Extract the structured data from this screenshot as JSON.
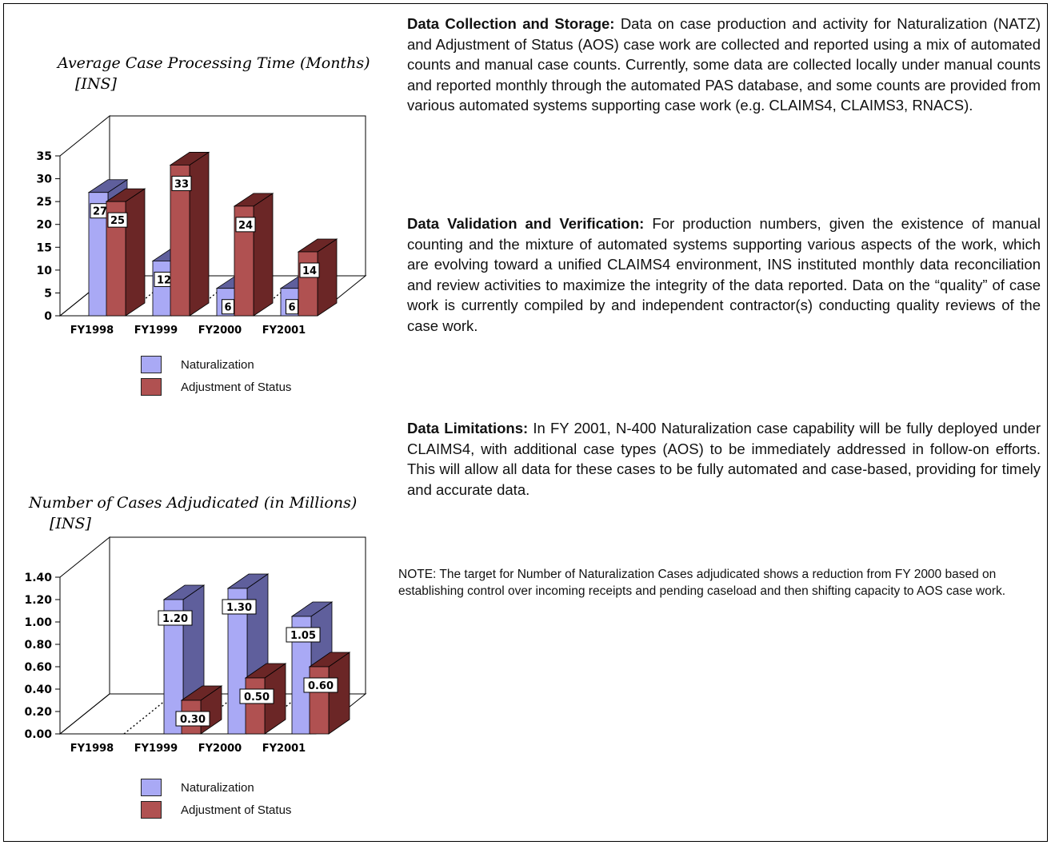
{
  "colors": {
    "naturalization": "#a9a9f5",
    "naturalization_dark": "#5f5f9c",
    "adjustment": "#b05151",
    "adjustment_dark": "#6b2626"
  },
  "chart_data": [
    {
      "type": "bar",
      "title": "Average Case Processing Time (Months)",
      "subtitle": "[INS]",
      "categories": [
        "FY1998",
        "FY1999",
        "FY2000",
        "FY2001"
      ],
      "ylim": [
        0,
        35
      ],
      "yticks": [
        "0",
        "5",
        "10",
        "15",
        "20",
        "25",
        "30",
        "35"
      ],
      "series": [
        {
          "name": "Naturalization",
          "values": [
            27,
            12,
            6,
            6
          ],
          "labels": [
            "27",
            "12",
            "6",
            "6"
          ]
        },
        {
          "name": "Adjustment of Status",
          "values": [
            25,
            33,
            24,
            14
          ],
          "labels": [
            "25",
            "33",
            "24",
            "14"
          ]
        }
      ],
      "legend_position": "bottom",
      "grid": false
    },
    {
      "type": "bar",
      "title": "Number of Cases Adjudicated  (in Millions)",
      "subtitle": "[INS]",
      "categories": [
        "FY1998",
        "FY1999",
        "FY2000",
        "FY2001"
      ],
      "ylim": [
        0,
        1.4
      ],
      "yticks": [
        "0.00",
        "0.20",
        "0.40",
        "0.60",
        "0.80",
        "1.00",
        "1.20",
        "1.40"
      ],
      "series": [
        {
          "name": "Naturalization",
          "values": [
            null,
            1.2,
            1.3,
            1.05
          ],
          "labels": [
            "",
            "1.20",
            "1.30",
            "1.05"
          ]
        },
        {
          "name": "Adjustment of Status",
          "values": [
            null,
            0.3,
            0.5,
            0.6
          ],
          "labels": [
            "",
            "0.30",
            "0.50",
            "0.60"
          ]
        }
      ],
      "legend_position": "bottom",
      "grid": false
    }
  ],
  "sections": [
    {
      "heading": "Data Collection and Storage:",
      "body": "Data on case production and activity for Naturalization (NATZ) and Adjustment of Status (AOS) case work are collected and reported using a mix of automated counts and manual case counts. Currently, some data are collected locally under manual counts and reported monthly through the automated PAS database, and some counts are provided from various automated systems supporting case work (e.g. CLAIMS4, CLAIMS3, RNACS)."
    },
    {
      "heading": "Data Validation and Verification:",
      "body": "For production numbers, given the existence of manual counting and the mixture of automated systems supporting various aspects of the work, which are evolving toward a unified CLAIMS4 environment, INS instituted monthly data reconciliation and review activities to maximize the integrity of the data reported. Data on the “quality” of case work is currently compiled by and independent contractor(s) conducting quality reviews of the case work."
    },
    {
      "heading": "Data Limitations:",
      "body": "In FY 2001, N-400 Naturalization case capability will be fully deployed under CLAIMS4, with additional case types (AOS) to be immediately addressed in follow-on efforts.  This will allow all data for these cases to be fully automated and case-based, providing for timely and accurate data."
    }
  ],
  "note": "NOTE: The target for Number of Naturalization Cases adjudicated shows a reduction from FY 2000 based on establishing control over incoming receipts and pending caseload and then shifting capacity to AOS case work."
}
